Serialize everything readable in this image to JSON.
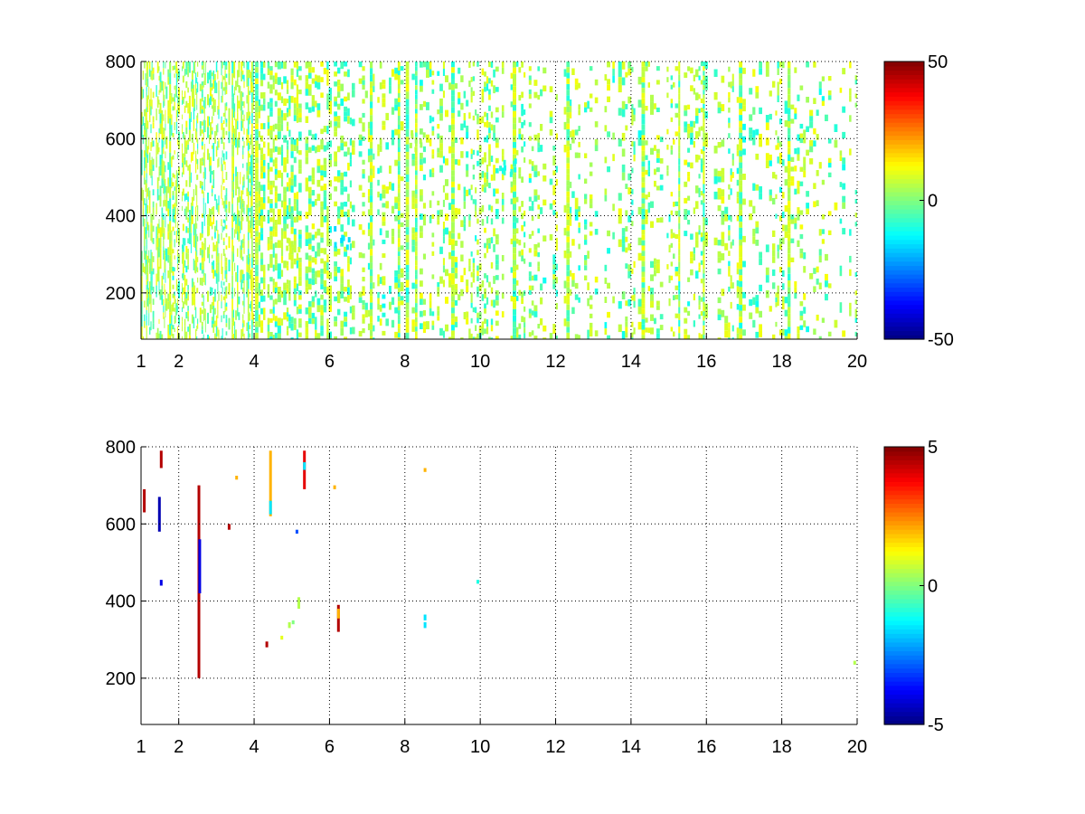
{
  "chart_data": [
    {
      "type": "heatmap",
      "title": "",
      "xlabel": "",
      "ylabel": "",
      "xlim": [
        1,
        20
      ],
      "ylim": [
        80,
        800
      ],
      "x_ticks": [
        1,
        2,
        4,
        6,
        8,
        10,
        12,
        14,
        16,
        18,
        20
      ],
      "x_tick_labels": [
        "1",
        "2",
        "4",
        "6",
        "8",
        "10",
        "12",
        "14",
        "16",
        "18",
        "20"
      ],
      "y_ticks": [
        200,
        400,
        600,
        800
      ],
      "y_tick_labels": [
        "200",
        "400",
        "600",
        "800"
      ],
      "grid": true,
      "colormap": "jet",
      "clim": [
        -50,
        50
      ],
      "colorbar_ticks": [
        -50,
        0,
        50
      ],
      "colorbar_tick_labels": [
        "-50",
        "0",
        "50"
      ],
      "density_profile": {
        "x": [
          1,
          1.5,
          2,
          2.5,
          3,
          3.5,
          4,
          4.5,
          5,
          5.5,
          6,
          7,
          8,
          9,
          10,
          11,
          12,
          13,
          14,
          15,
          16,
          17,
          18,
          19,
          20
        ],
        "fill_fraction": [
          0.45,
          0.5,
          0.45,
          0.5,
          0.45,
          0.4,
          0.55,
          0.55,
          0.5,
          0.5,
          0.45,
          0.28,
          0.3,
          0.25,
          0.28,
          0.25,
          0.28,
          0.22,
          0.25,
          0.2,
          0.28,
          0.3,
          0.22,
          0.18,
          0.22
        ]
      },
      "value_range_typical": [
        -12,
        12
      ],
      "notable_features": [
        {
          "x": 5.0,
          "y": 340,
          "value": 8
        },
        {
          "x": 6.3,
          "y": 350,
          "value": -15
        },
        {
          "x": 10.7,
          "y": 520,
          "value": -10
        },
        {
          "x": 8.3,
          "y": 600,
          "value": 5
        }
      ]
    },
    {
      "type": "heatmap",
      "title": "",
      "xlabel": "",
      "ylabel": "",
      "xlim": [
        1,
        20
      ],
      "ylim": [
        80,
        800
      ],
      "x_ticks": [
        1,
        2,
        4,
        6,
        8,
        10,
        12,
        14,
        16,
        18,
        20
      ],
      "x_tick_labels": [
        "1",
        "2",
        "4",
        "6",
        "8",
        "10",
        "12",
        "14",
        "16",
        "18",
        "20"
      ],
      "y_ticks": [
        200,
        400,
        600,
        800
      ],
      "y_tick_labels": [
        "200",
        "400",
        "600",
        "800"
      ],
      "grid": true,
      "colormap": "jet",
      "clim": [
        -5,
        5
      ],
      "colorbar_ticks": [
        -5,
        0,
        5
      ],
      "colorbar_tick_labels": [
        "-5",
        "0",
        "5"
      ],
      "segments": [
        {
          "x": 1.05,
          "y0": 630,
          "y1": 690,
          "value": 4.5
        },
        {
          "x": 1.45,
          "y0": 580,
          "y1": 670,
          "value": -4.5
        },
        {
          "x": 1.5,
          "y0": 745,
          "y1": 790,
          "value": 4.5
        },
        {
          "x": 1.5,
          "y0": 440,
          "y1": 455,
          "value": -4
        },
        {
          "x": 2.5,
          "y0": 200,
          "y1": 700,
          "value": 4.5
        },
        {
          "x": 2.52,
          "y0": 420,
          "y1": 560,
          "value": -4
        },
        {
          "x": 3.3,
          "y0": 585,
          "y1": 600,
          "value": 4.5
        },
        {
          "x": 3.5,
          "y0": 715,
          "y1": 725,
          "value": 2
        },
        {
          "x": 4.3,
          "y0": 280,
          "y1": 295,
          "value": 4.5
        },
        {
          "x": 4.4,
          "y0": 620,
          "y1": 790,
          "value": 2
        },
        {
          "x": 4.4,
          "y0": 625,
          "y1": 660,
          "value": -1.5
        },
        {
          "x": 4.7,
          "y0": 300,
          "y1": 310,
          "value": 1
        },
        {
          "x": 4.9,
          "y0": 330,
          "y1": 345,
          "value": 0.5
        },
        {
          "x": 5.0,
          "y0": 340,
          "y1": 350,
          "value": 0
        },
        {
          "x": 5.1,
          "y0": 575,
          "y1": 585,
          "value": -3
        },
        {
          "x": 5.15,
          "y0": 380,
          "y1": 410,
          "value": 0.5
        },
        {
          "x": 5.3,
          "y0": 690,
          "y1": 790,
          "value": 4
        },
        {
          "x": 5.3,
          "y0": 740,
          "y1": 760,
          "value": -1.5
        },
        {
          "x": 6.1,
          "y0": 690,
          "y1": 700,
          "value": 2
        },
        {
          "x": 6.2,
          "y0": 320,
          "y1": 390,
          "value": 4.5
        },
        {
          "x": 6.2,
          "y0": 355,
          "y1": 380,
          "value": 2
        },
        {
          "x": 8.5,
          "y0": 330,
          "y1": 345,
          "value": -1.5
        },
        {
          "x": 8.5,
          "y0": 350,
          "y1": 365,
          "value": -1.5
        },
        {
          "x": 8.5,
          "y0": 735,
          "y1": 745,
          "value": 2
        },
        {
          "x": 9.9,
          "y0": 445,
          "y1": 455,
          "value": -1
        },
        {
          "x": 19.9,
          "y0": 235,
          "y1": 245,
          "value": 0.5
        }
      ]
    }
  ]
}
